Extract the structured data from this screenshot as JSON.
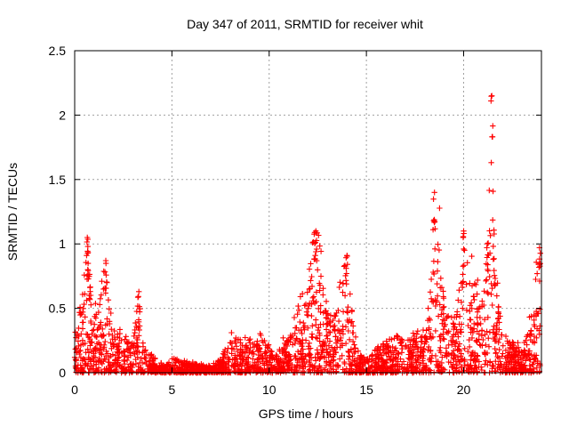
{
  "chart_data": {
    "type": "scatter",
    "title": "Day 347 of 2011, SRMTID for receiver whit",
    "xlabel": "GPS time / hours",
    "ylabel": "SRMTID / TECUs",
    "xlim": [
      0,
      24
    ],
    "ylim": [
      0,
      2.5
    ],
    "xticks": [
      "0",
      "5",
      "10",
      "15",
      "20"
    ],
    "xtick_values": [
      0,
      5,
      10,
      15,
      20
    ],
    "yticks": [
      "0",
      "0.5",
      "1",
      "1.5",
      "2",
      "2.5"
    ],
    "ytick_values": [
      0,
      0.5,
      1,
      1.5,
      2,
      2.5
    ],
    "grid": true,
    "marker": "+",
    "color": "#ff0000",
    "series": [
      {
        "name": "SRMTID",
        "profile_hours": [
          0,
          0.3,
          0.5,
          0.6,
          0.7,
          0.9,
          1.2,
          1.5,
          2.0,
          2.5,
          3.0,
          3.2,
          3.4,
          3.8,
          4.2,
          4.6,
          5.0,
          5.5,
          6.0,
          6.5,
          7.0,
          7.5,
          8.0,
          8.5,
          9.0,
          9.5,
          10.0,
          10.5,
          11.0,
          11.5,
          12.0,
          12.3,
          12.5,
          12.7,
          13.0,
          13.5,
          13.8,
          14.0,
          14.3,
          14.6,
          15.0,
          15.5,
          16.0,
          16.5,
          17.0,
          17.5,
          18.0,
          18.3,
          18.5,
          18.7,
          19.0,
          19.5,
          19.9,
          20.1,
          20.3,
          20.6,
          21.0,
          21.2,
          21.3,
          21.4,
          21.5,
          21.7,
          22.0,
          22.5,
          23.0,
          23.5,
          23.8,
          24.0
        ],
        "profile_envelope": [
          0.3,
          0.55,
          0.8,
          1.05,
          0.9,
          0.5,
          0.45,
          0.85,
          0.35,
          0.3,
          0.25,
          0.6,
          0.3,
          0.15,
          0.1,
          0.06,
          0.1,
          0.12,
          0.08,
          0.06,
          0.05,
          0.1,
          0.28,
          0.25,
          0.25,
          0.3,
          0.2,
          0.2,
          0.3,
          0.5,
          0.7,
          1.05,
          1.1,
          0.8,
          0.45,
          0.5,
          0.8,
          0.9,
          0.4,
          0.15,
          0.12,
          0.2,
          0.25,
          0.3,
          0.25,
          0.3,
          0.35,
          0.6,
          1.3,
          1.4,
          0.6,
          0.4,
          0.7,
          1.1,
          0.85,
          0.7,
          0.6,
          1.0,
          1.6,
          2.15,
          1.8,
          0.7,
          0.3,
          0.25,
          0.2,
          0.45,
          0.9,
          0.95
        ],
        "peaks": [
          {
            "x": 0.65,
            "y": 1.05
          },
          {
            "x": 1.6,
            "y": 0.87
          },
          {
            "x": 3.3,
            "y": 0.63
          },
          {
            "x": 12.4,
            "y": 1.1
          },
          {
            "x": 14.0,
            "y": 0.91
          },
          {
            "x": 18.5,
            "y": 1.4
          },
          {
            "x": 20.0,
            "y": 1.1
          },
          {
            "x": 21.45,
            "y": 2.15
          },
          {
            "x": 23.9,
            "y": 0.97
          }
        ]
      }
    ]
  }
}
